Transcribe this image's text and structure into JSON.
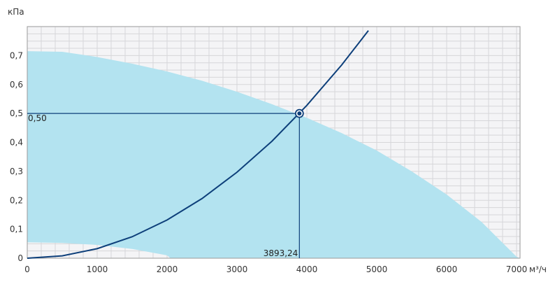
{
  "chart_data": {
    "type": "line",
    "ylabel": "кПа",
    "xlabel": "м³/ч",
    "xlim": [
      0,
      7050
    ],
    "ylim": [
      0,
      0.8
    ],
    "xticks": [
      0,
      1000,
      2000,
      3000,
      4000,
      5000,
      6000,
      7000
    ],
    "xtick_labels": [
      "0",
      "1000",
      "2000",
      "3000",
      "4000",
      "5000",
      "6000",
      "7000"
    ],
    "yticks": [
      0,
      0.1,
      0.2,
      0.3,
      0.4,
      0.5,
      0.6,
      0.7
    ],
    "ytick_labels": [
      "0",
      "0,1",
      "0,2",
      "0,3",
      "0,4",
      "0,5",
      "0,6",
      "0,7"
    ],
    "grid": true,
    "operating_region": {
      "upper_boundary": {
        "x": [
          0,
          500,
          1000,
          1500,
          2000,
          2500,
          3000,
          3500,
          4000,
          4500,
          5000,
          5500,
          6000,
          6500,
          7000
        ],
        "y": [
          0.715,
          0.713,
          0.695,
          0.672,
          0.645,
          0.613,
          0.575,
          0.532,
          0.485,
          0.432,
          0.372,
          0.3,
          0.22,
          0.125,
          0.005
        ]
      },
      "lower_boundary": {
        "x": [
          0,
          500,
          1000,
          1500,
          2000,
          2050
        ],
        "y": [
          0.055,
          0.053,
          0.046,
          0.032,
          0.01,
          0.0
        ]
      },
      "color": "#b3e3f0"
    },
    "system_curve": {
      "x": [
        0,
        500,
        1000,
        1500,
        2000,
        2500,
        3000,
        3500,
        4000,
        4500,
        4880
      ],
      "y": [
        0,
        0.0082,
        0.033,
        0.074,
        0.132,
        0.206,
        0.297,
        0.404,
        0.528,
        0.668,
        0.786
      ],
      "color": "#0d3f7a"
    },
    "operating_point": {
      "x": 3893.24,
      "y": 0.5,
      "x_label": "3893,24",
      "y_label": "0,50",
      "color": "#0d3f7a"
    }
  },
  "colors": {
    "plot_background": "#f4f4f6",
    "grid": "#d6d6d9",
    "axis": "#9a9a9a"
  }
}
